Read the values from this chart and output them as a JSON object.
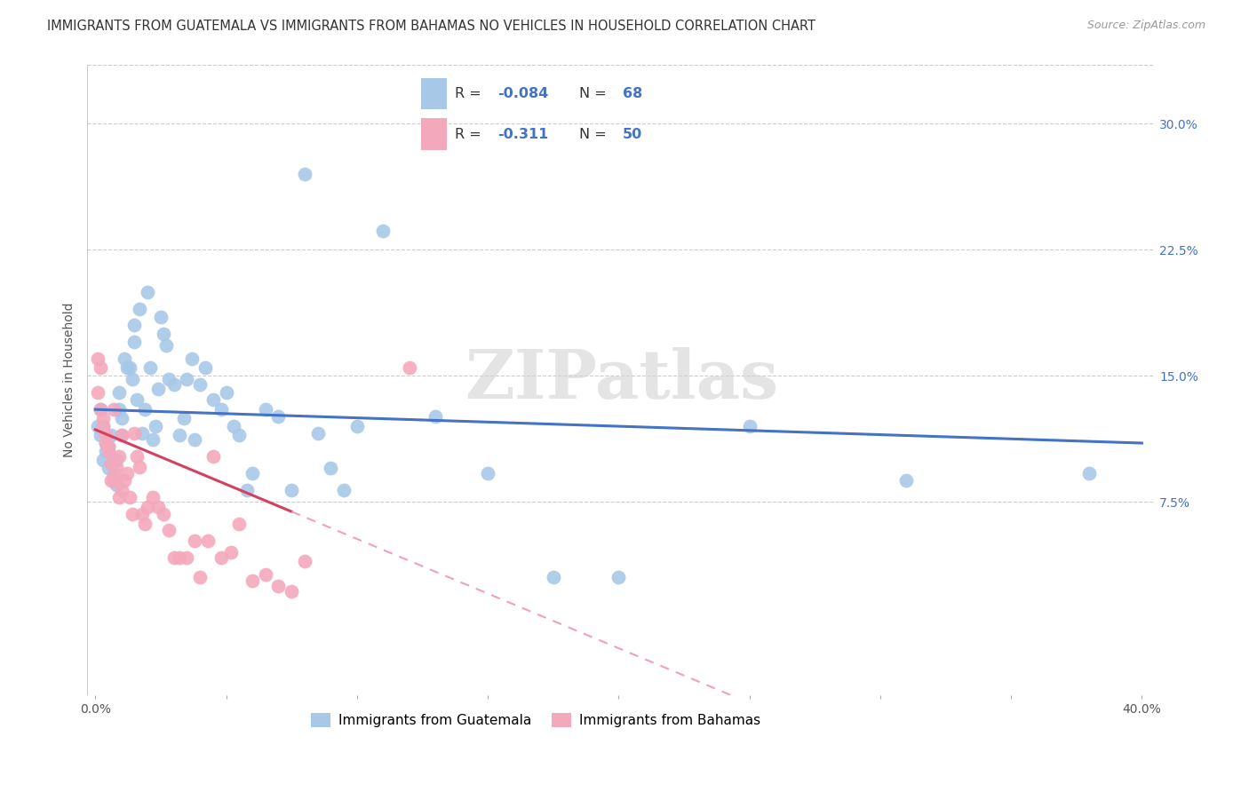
{
  "title": "IMMIGRANTS FROM GUATEMALA VS IMMIGRANTS FROM BAHAMAS NO VEHICLES IN HOUSEHOLD CORRELATION CHART",
  "source": "Source: ZipAtlas.com",
  "ylabel": "No Vehicles in Household",
  "yticks": [
    "7.5%",
    "15.0%",
    "22.5%",
    "30.0%"
  ],
  "ytick_vals": [
    0.075,
    0.15,
    0.225,
    0.3
  ],
  "xtick_vals": [
    0.0,
    0.05,
    0.1,
    0.15,
    0.2,
    0.25,
    0.3,
    0.35,
    0.4
  ],
  "xlim": [
    -0.003,
    0.405
  ],
  "ylim": [
    -0.04,
    0.335
  ],
  "R_guatemala": -0.084,
  "N_guatemala": 68,
  "R_bahamas": -0.311,
  "N_bahamas": 50,
  "color_guatemala": "#a8c8e8",
  "color_bahamas": "#f4a8bc",
  "line_color_guatemala": "#4472c4",
  "line_color_bahamas": "#d44060",
  "line_color_bahamas_dashed": "#f0a0b8",
  "legend_label_guatemala": "Immigrants from Guatemala",
  "legend_label_bahamas": "Immigrants from Bahamas",
  "guatemala_x": [
    0.001,
    0.002,
    0.002,
    0.003,
    0.003,
    0.004,
    0.004,
    0.005,
    0.005,
    0.006,
    0.007,
    0.007,
    0.008,
    0.008,
    0.009,
    0.009,
    0.01,
    0.01,
    0.011,
    0.012,
    0.013,
    0.014,
    0.015,
    0.015,
    0.016,
    0.017,
    0.018,
    0.019,
    0.02,
    0.021,
    0.022,
    0.023,
    0.024,
    0.025,
    0.026,
    0.027,
    0.028,
    0.03,
    0.032,
    0.034,
    0.035,
    0.037,
    0.038,
    0.04,
    0.042,
    0.045,
    0.048,
    0.05,
    0.053,
    0.055,
    0.058,
    0.06,
    0.065,
    0.07,
    0.075,
    0.08,
    0.085,
    0.09,
    0.095,
    0.1,
    0.11,
    0.13,
    0.15,
    0.175,
    0.2,
    0.25,
    0.31,
    0.38
  ],
  "guatemala_y": [
    0.12,
    0.115,
    0.13,
    0.1,
    0.12,
    0.105,
    0.11,
    0.095,
    0.108,
    0.115,
    0.088,
    0.092,
    0.1,
    0.085,
    0.14,
    0.13,
    0.125,
    0.115,
    0.16,
    0.155,
    0.155,
    0.148,
    0.18,
    0.17,
    0.136,
    0.19,
    0.116,
    0.13,
    0.2,
    0.155,
    0.112,
    0.12,
    0.142,
    0.185,
    0.175,
    0.168,
    0.148,
    0.145,
    0.115,
    0.125,
    0.148,
    0.16,
    0.112,
    0.145,
    0.155,
    0.136,
    0.13,
    0.14,
    0.12,
    0.115,
    0.082,
    0.092,
    0.13,
    0.126,
    0.082,
    0.27,
    0.116,
    0.095,
    0.082,
    0.12,
    0.236,
    0.126,
    0.092,
    0.03,
    0.03,
    0.12,
    0.088,
    0.092
  ],
  "bahamas_x": [
    0.001,
    0.001,
    0.002,
    0.002,
    0.003,
    0.003,
    0.004,
    0.004,
    0.005,
    0.005,
    0.006,
    0.006,
    0.007,
    0.007,
    0.008,
    0.008,
    0.009,
    0.009,
    0.01,
    0.01,
    0.011,
    0.012,
    0.013,
    0.014,
    0.015,
    0.016,
    0.017,
    0.018,
    0.019,
    0.02,
    0.022,
    0.024,
    0.026,
    0.028,
    0.03,
    0.032,
    0.035,
    0.038,
    0.04,
    0.043,
    0.045,
    0.048,
    0.052,
    0.055,
    0.06,
    0.065,
    0.07,
    0.075,
    0.08,
    0.12
  ],
  "bahamas_y": [
    0.16,
    0.14,
    0.155,
    0.13,
    0.125,
    0.12,
    0.115,
    0.11,
    0.108,
    0.105,
    0.098,
    0.088,
    0.13,
    0.09,
    0.096,
    0.088,
    0.102,
    0.078,
    0.115,
    0.082,
    0.088,
    0.092,
    0.078,
    0.068,
    0.116,
    0.102,
    0.096,
    0.068,
    0.062,
    0.072,
    0.078,
    0.072,
    0.068,
    0.058,
    0.042,
    0.042,
    0.042,
    0.052,
    0.03,
    0.052,
    0.102,
    0.042,
    0.045,
    0.062,
    0.028,
    0.032,
    0.025,
    0.022,
    0.04,
    0.155
  ],
  "watermark": "ZIPatlas",
  "title_fontsize": 10.5,
  "axis_label_fontsize": 10,
  "tick_fontsize": 10,
  "legend_fontsize": 11
}
